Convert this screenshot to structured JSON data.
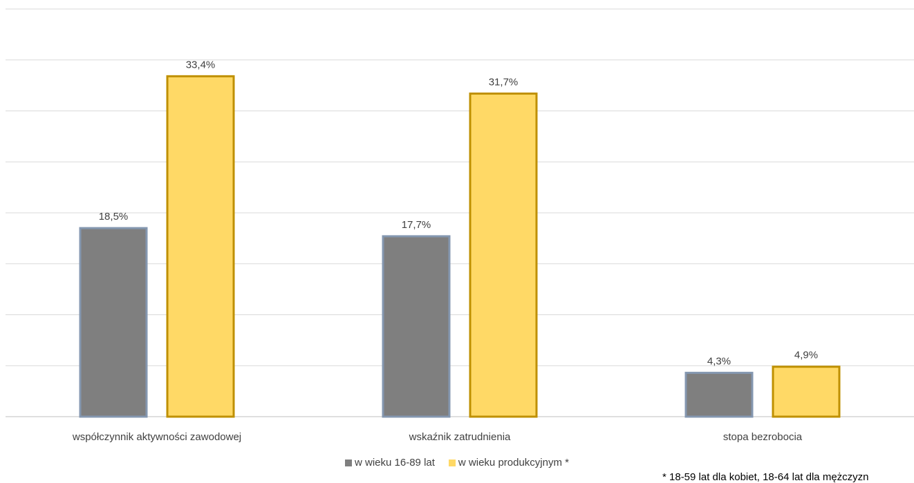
{
  "chart_data": {
    "type": "bar",
    "categories": [
      "współczynnik aktywności zawodowej",
      "wskaźnik zatrudnienia",
      "stopa bezrobocia"
    ],
    "series": [
      {
        "name": "w wieku 16-89 lat",
        "values": [
          18.5,
          17.7,
          4.3
        ],
        "labels": [
          "18,5%",
          "17,7%",
          "4,3%"
        ],
        "color": "#7f7f7f",
        "border": "#8497b0"
      },
      {
        "name": "w wieku produkcyjnym *",
        "values": [
          33.4,
          31.7,
          4.9
        ],
        "labels": [
          "33,4%",
          "31,7%",
          "4,9%"
        ],
        "color": "#ffd966",
        "border": "#bf9000"
      }
    ],
    "ylim": [
      0,
      40
    ],
    "grid": true,
    "legend": "bottom",
    "footnote": "* 18-59 lat dla kobiet, 18-64 lat dla mężczyzn"
  }
}
